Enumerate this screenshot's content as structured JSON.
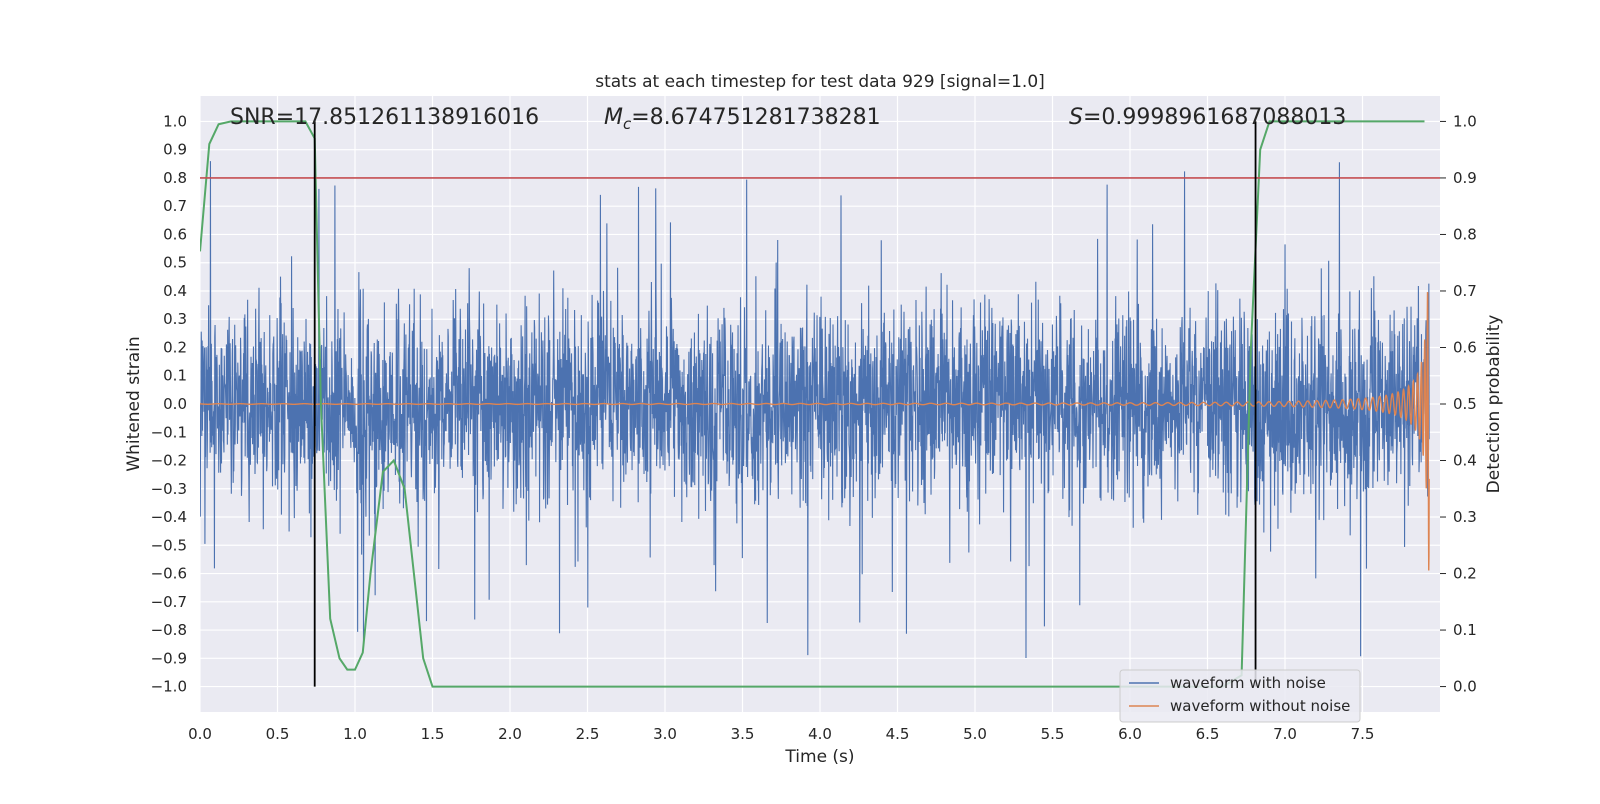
{
  "chart_data": {
    "type": "line",
    "title": "stats at each timestep for test data 929 [signal=1.0]",
    "xlabel": "Time (s)",
    "ylabel": "Whitened strain",
    "y2label": "Detection probability",
    "xlim": [
      0.0,
      8.0
    ],
    "ylim": [
      -1.09,
      1.09
    ],
    "y2lim": [
      -0.045,
      1.045
    ],
    "xticks": [
      "0.0",
      "0.5",
      "1.0",
      "1.5",
      "2.0",
      "2.5",
      "3.0",
      "3.5",
      "4.0",
      "4.5",
      "5.0",
      "5.5",
      "6.0",
      "6.5",
      "7.0",
      "7.5"
    ],
    "yticks": [
      "1.0",
      "0.9",
      "0.8",
      "0.7",
      "0.6",
      "0.5",
      "0.4",
      "0.3",
      "0.2",
      "0.1",
      "0.0",
      "−0.1",
      "−0.2",
      "−0.3",
      "−0.4",
      "−0.5",
      "−0.6",
      "−0.7",
      "−0.8",
      "−0.9",
      "−1.0"
    ],
    "y2ticks": [
      "1.0",
      "0.9",
      "0.8",
      "0.7",
      "0.6",
      "0.5",
      "0.4",
      "0.3",
      "0.2",
      "0.1",
      "0.0"
    ],
    "grid": true,
    "legend_position": "lower right",
    "annotations": {
      "snr": "SNR=17.851261138916016",
      "mc_symbol": "M",
      "mc_sub": "c",
      "mc_value": "=8.674751281738281",
      "s_symbol": "S",
      "s_value": "=0.9998961687088013"
    },
    "series": [
      {
        "name": "waveform with noise",
        "color": "#4c72b0",
        "style": "dense noise band, mostly within ±0.4, spikes to about ±0.9"
      },
      {
        "name": "waveform without noise",
        "color": "#dd8452",
        "style": "chirp with growing amplitude and frequency up to about t=7.9"
      },
      {
        "name": "",
        "color": "#55a868",
        "axis": "right",
        "x": [
          0.0,
          0.06,
          0.12,
          0.2,
          0.3,
          0.4,
          0.5,
          0.6,
          0.68,
          0.74,
          0.78,
          0.84,
          0.9,
          0.95,
          1.0,
          1.05,
          1.1,
          1.18,
          1.25,
          1.32,
          1.38,
          1.44,
          1.5,
          1.6,
          2.0,
          3.0,
          4.0,
          5.0,
          6.0,
          6.6,
          6.72,
          6.78,
          6.84,
          6.9,
          6.96,
          7.1,
          7.5,
          7.9
        ],
        "values": [
          0.77,
          0.96,
          0.995,
          1.0,
          1.0,
          1.0,
          1.0,
          1.0,
          1.0,
          0.97,
          0.5,
          0.12,
          0.05,
          0.03,
          0.03,
          0.06,
          0.2,
          0.38,
          0.4,
          0.35,
          0.2,
          0.05,
          0.0,
          0.0,
          0.0,
          0.0,
          0.0,
          0.0,
          0.0,
          0.0,
          0.02,
          0.6,
          0.95,
          1.0,
          1.0,
          1.0,
          1.0,
          1.0
        ]
      }
    ],
    "hlines": [
      {
        "y2": 0.9,
        "color": "#c44e52"
      }
    ],
    "vlines": [
      {
        "x": 0.74,
        "color": "#000000"
      },
      {
        "x": 6.81,
        "color": "#000000"
      }
    ]
  }
}
